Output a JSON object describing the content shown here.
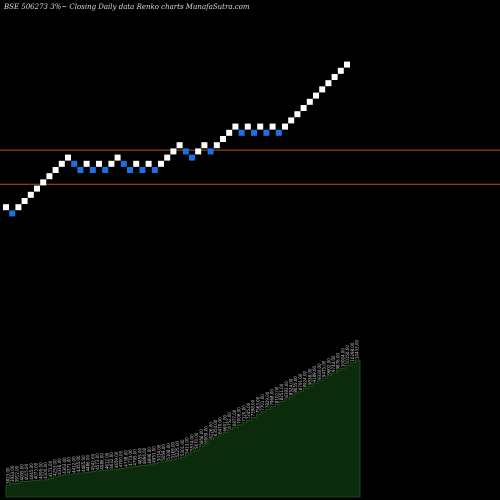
{
  "chart_data": {
    "type": "renko",
    "title": "BSE 506273 3%~ Closing Daily data Renko charts MunafaSutra.com",
    "brick_size_percent": 3,
    "colors": {
      "background": "#000000",
      "up_brick": "#ffffff",
      "down_brick": "#1e6fe0",
      "reference_line": "#b5520f",
      "volume_fill": "#0c2a0c",
      "volume_edge": "#1e5a1e",
      "volume_label": "#cccccc"
    },
    "bricks": [
      {
        "dir": "up",
        "level": 9
      },
      {
        "dir": "down",
        "level": 8
      },
      {
        "dir": "up",
        "level": 9
      },
      {
        "dir": "up",
        "level": 10
      },
      {
        "dir": "up",
        "level": 11
      },
      {
        "dir": "up",
        "level": 12
      },
      {
        "dir": "up",
        "level": 13
      },
      {
        "dir": "up",
        "level": 14
      },
      {
        "dir": "up",
        "level": 15
      },
      {
        "dir": "up",
        "level": 16
      },
      {
        "dir": "up",
        "level": 17
      },
      {
        "dir": "down",
        "level": 16
      },
      {
        "dir": "down",
        "level": 15
      },
      {
        "dir": "up",
        "level": 16
      },
      {
        "dir": "down",
        "level": 15
      },
      {
        "dir": "up",
        "level": 16
      },
      {
        "dir": "down",
        "level": 15
      },
      {
        "dir": "up",
        "level": 16
      },
      {
        "dir": "up",
        "level": 17
      },
      {
        "dir": "down",
        "level": 16
      },
      {
        "dir": "down",
        "level": 15
      },
      {
        "dir": "up",
        "level": 16
      },
      {
        "dir": "down",
        "level": 15
      },
      {
        "dir": "up",
        "level": 16
      },
      {
        "dir": "down",
        "level": 15
      },
      {
        "dir": "up",
        "level": 16
      },
      {
        "dir": "up",
        "level": 17
      },
      {
        "dir": "up",
        "level": 18
      },
      {
        "dir": "up",
        "level": 19
      },
      {
        "dir": "down",
        "level": 18
      },
      {
        "dir": "down",
        "level": 17
      },
      {
        "dir": "up",
        "level": 18
      },
      {
        "dir": "up",
        "level": 19
      },
      {
        "dir": "down",
        "level": 18
      },
      {
        "dir": "up",
        "level": 19
      },
      {
        "dir": "up",
        "level": 20
      },
      {
        "dir": "up",
        "level": 21
      },
      {
        "dir": "up",
        "level": 22
      },
      {
        "dir": "down",
        "level": 21
      },
      {
        "dir": "up",
        "level": 22
      },
      {
        "dir": "down",
        "level": 21
      },
      {
        "dir": "up",
        "level": 22
      },
      {
        "dir": "down",
        "level": 21
      },
      {
        "dir": "up",
        "level": 22
      },
      {
        "dir": "down",
        "level": 21
      },
      {
        "dir": "up",
        "level": 22
      },
      {
        "dir": "up",
        "level": 23
      },
      {
        "dir": "up",
        "level": 24
      },
      {
        "dir": "up",
        "level": 25
      },
      {
        "dir": "up",
        "level": 26
      },
      {
        "dir": "up",
        "level": 27
      },
      {
        "dir": "up",
        "level": 28
      },
      {
        "dir": "up",
        "level": 29
      },
      {
        "dir": "up",
        "level": 30
      },
      {
        "dir": "up",
        "level": 31
      },
      {
        "dir": "up",
        "level": 32
      }
    ],
    "reference_lines": [
      {
        "level": 18.2
      },
      {
        "level": 12.7
      }
    ],
    "volume_labels": [
      "3823.00",
      "3924.00",
      "3912.00",
      "4005.00",
      "4015.00",
      "4045.00",
      "4073.00",
      "4095.00",
      "4100.00",
      "4171.00",
      "4253.00",
      "4316.00",
      "4363.00",
      "4371.00",
      "4412.00",
      "4455.00",
      "4465.00",
      "4486.00",
      "4542.00",
      "4573.00",
      "4586.00",
      "4612.00",
      "4632.00",
      "4659.00",
      "4700.00",
      "4738.00",
      "4774.00",
      "4795.00",
      "4855.00",
      "4866.00",
      "4896.00",
      "4951.00",
      "5034.00",
      "5059.00",
      "5108.00",
      "5169.00",
      "5225.00",
      "5301.00",
      "5413.00",
      "5574.00",
      "5670.00",
      "5856.00",
      "6009.00",
      "6226.00",
      "6354.00",
      "6470.00",
      "6601.00",
      "6752.00",
      "6877.00",
      "7006.00",
      "7120.00",
      "7245.00",
      "7398.00",
      "7563.00",
      "7701.00",
      "7829.00",
      "7968.00",
      "8102.00",
      "8251.00",
      "8393.00",
      "8524.00",
      "8655.00",
      "8791.00",
      "8924.00",
      "9058.00",
      "9189.00",
      "9330.00",
      "9475.00",
      "9602.00",
      "9744.00",
      "9876.00",
      "10004.00",
      "10156.00",
      "10298.00",
      "10433.00"
    ]
  }
}
